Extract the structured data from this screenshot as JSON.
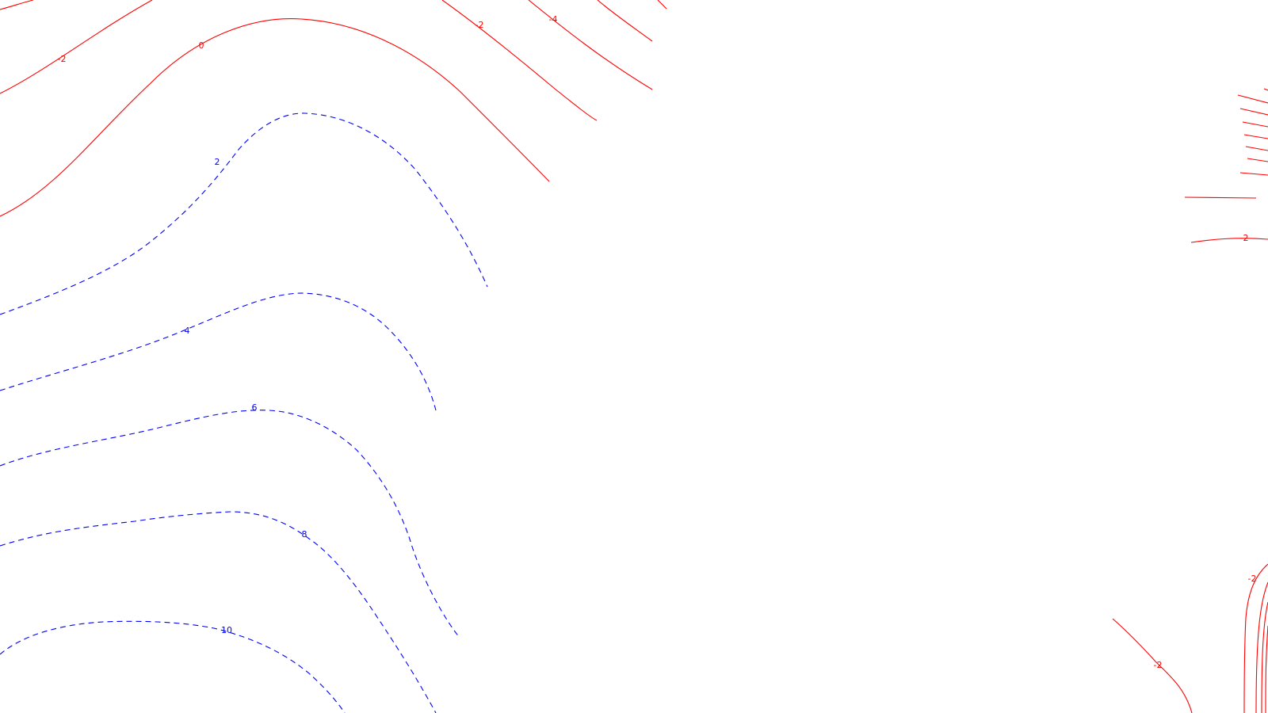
{
  "map": {
    "type": "contour-map",
    "background": "#ffffff",
    "colors": {
      "positive": "#0000ff",
      "negative": "#ff0000"
    },
    "line_styles": {
      "positive": "dashed",
      "negative": "solid"
    },
    "contour_levels": [
      {
        "id": "l-neg2-topleft",
        "value": -2,
        "label": "-2"
      },
      {
        "id": "l-0",
        "value": 0,
        "label": "0"
      },
      {
        "id": "l-neg2-top",
        "value": -2,
        "label": "-2"
      },
      {
        "id": "l-neg4-top",
        "value": -4,
        "label": "-4"
      },
      {
        "id": "l-2",
        "value": 2,
        "label": "2"
      },
      {
        "id": "l-4",
        "value": 4,
        "label": "4"
      },
      {
        "id": "l-6",
        "value": 6,
        "label": "6"
      },
      {
        "id": "l-8",
        "value": 8,
        "label": "8"
      },
      {
        "id": "l-10",
        "value": 10,
        "label": "10"
      },
      {
        "id": "l-neg2-right",
        "value": -2,
        "label": "-2"
      },
      {
        "id": "l-neg2-bottomright-a",
        "value": -2,
        "label": "-2"
      },
      {
        "id": "l-neg2-bottomright-b",
        "value": -2,
        "label": "-2"
      }
    ]
  }
}
